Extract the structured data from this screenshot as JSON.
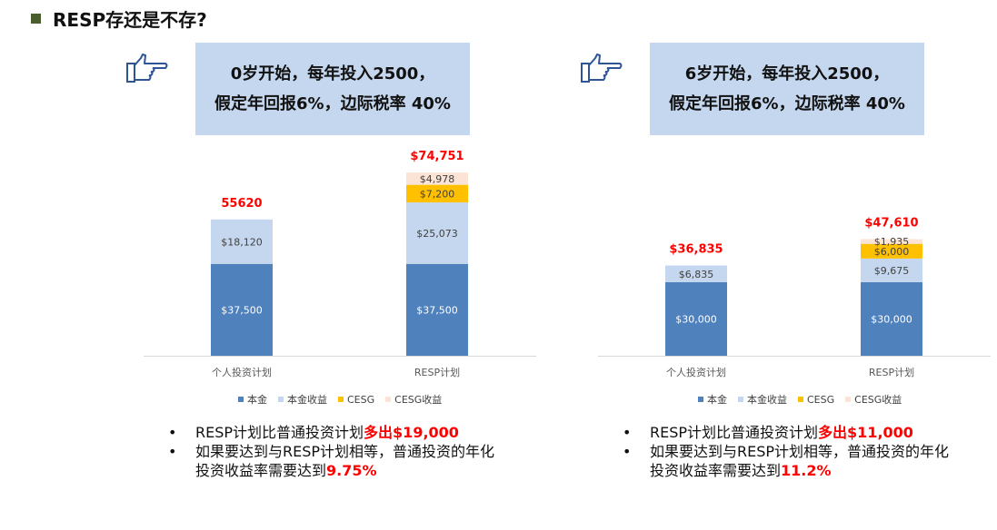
{
  "title": "RESP存还是不存?",
  "colors": {
    "principal": "#4f81bd",
    "principal_gain": "#c5d7ee",
    "cesg": "#ffc000",
    "cesg_gain": "#fbe4d5",
    "highlight": "#ff0000",
    "callout_bg": "#c5d7ee"
  },
  "panels": [
    {
      "callout": {
        "line1": "0岁开始，每年投入2500，",
        "line2": "假定年回报6%，边际税率 40%"
      },
      "chart_data": {
        "type": "bar",
        "stacked": true,
        "categories": [
          "个人投资计划",
          "RESP计划"
        ],
        "series": [
          {
            "name": "本金",
            "values": [
              37500,
              37500
            ],
            "labels": [
              "$37,500",
              "$37,500"
            ]
          },
          {
            "name": "本金收益",
            "values": [
              18120,
              25073
            ],
            "labels": [
              "$18,120",
              "$25,073"
            ]
          },
          {
            "name": "CESG",
            "values": [
              0,
              7200
            ],
            "labels": [
              "",
              "$7,200"
            ]
          },
          {
            "name": "CESG收益",
            "values": [
              0,
              4978
            ],
            "labels": [
              "",
              "$4,978"
            ]
          }
        ],
        "totals": [
          "55620",
          "$74,751"
        ]
      },
      "legend": [
        "本金",
        "本金收益",
        "CESG",
        "CESG收益"
      ],
      "bullet": "•",
      "notes": [
        {
          "text": "RESP计划比普通投资计划",
          "highlight": "多出$19,000"
        },
        {
          "text": "如果要达到与RESP计划相等，普通投资的年化投资收益率需要达到",
          "highlight": "9.75%"
        }
      ]
    },
    {
      "callout": {
        "line1": "6岁开始，每年投入2500，",
        "line2": "假定年回报6%，边际税率 40%"
      },
      "chart_data": {
        "type": "bar",
        "stacked": true,
        "categories": [
          "个人投资计划",
          "RESP计划"
        ],
        "series": [
          {
            "name": "本金",
            "values": [
              30000,
              30000
            ],
            "labels": [
              "$30,000",
              "$30,000"
            ]
          },
          {
            "name": "本金收益",
            "values": [
              6835,
              9675
            ],
            "labels": [
              "$6,835",
              "$9,675"
            ]
          },
          {
            "name": "CESG",
            "values": [
              0,
              6000
            ],
            "labels": [
              "",
              "$6,000"
            ]
          },
          {
            "name": "CESG收益",
            "values": [
              0,
              1935
            ],
            "labels": [
              "",
              "$1,935"
            ]
          }
        ],
        "totals": [
          "$36,835",
          "$47,610"
        ]
      },
      "legend": [
        "本金",
        "本金收益",
        "CESG",
        "CESG收益"
      ],
      "bullet": "•",
      "notes": [
        {
          "text": "RESP计划比普通投资计划",
          "highlight": "多出$11,000"
        },
        {
          "text": "如果要达到与RESP计划相等，普通投资的年化投资收益率需要达到",
          "highlight": "11.2%"
        }
      ]
    }
  ]
}
